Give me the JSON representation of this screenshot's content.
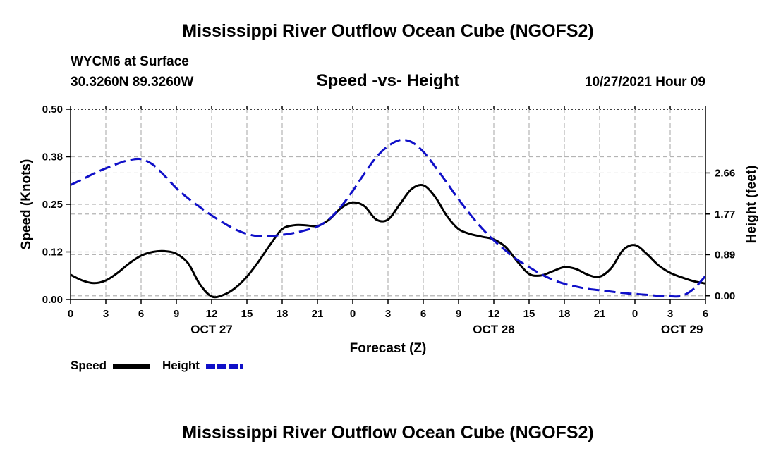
{
  "header": {
    "title": "Mississippi River Outflow Ocean Cube (NGOFS2)",
    "station": "WYCM6 at Surface",
    "coords": "30.3260N  89.3260W",
    "datetime": "10/27/2021 Hour 09",
    "footer_title": "Mississippi River Outflow Ocean Cube (NGOFS2)"
  },
  "legend": {
    "speed_label": "Speed",
    "height_label": "Height",
    "speed_color": "#000000",
    "height_color": "#1010c8"
  },
  "chart_data": {
    "type": "line",
    "title": "Speed -vs- Height",
    "xlabel": "Forecast (Z)",
    "ylabel": "Speed (Knots)",
    "y2label": "Height (feet)",
    "xlim": [
      0,
      54
    ],
    "ylim": [
      0,
      0.5
    ],
    "y2lim": [
      -0.08,
      4.04
    ],
    "x_ticks": [
      0,
      3,
      6,
      9,
      12,
      15,
      18,
      21,
      24,
      27,
      30,
      33,
      36,
      39,
      42,
      45,
      48,
      51,
      54
    ],
    "x_tick_labels": [
      "0",
      "3",
      "6",
      "9",
      "12",
      "15",
      "18",
      "21",
      "0",
      "3",
      "6",
      "9",
      "12",
      "15",
      "18",
      "21",
      "0",
      "3",
      "6"
    ],
    "day_labels": [
      {
        "x": 12,
        "label": "OCT 27"
      },
      {
        "x": 36,
        "label": "OCT 28"
      },
      {
        "x": 52,
        "label": "OCT 29"
      }
    ],
    "y_ticks": [
      0,
      0.125,
      0.25,
      0.375,
      0.5
    ],
    "y_tick_labels": [
      "0.00",
      "0.12",
      "0.25",
      "0.38",
      "0.50"
    ],
    "y2_ticks": [
      0,
      0.89,
      1.77,
      2.66
    ],
    "y2_tick_labels": [
      "0.00",
      "0.89",
      "1.77",
      "2.66"
    ],
    "grid": true,
    "series": [
      {
        "name": "Speed",
        "axis": "left",
        "color": "#000000",
        "dash": "solid",
        "x": [
          0,
          1,
          2,
          3,
          4,
          5,
          6,
          7,
          8,
          9,
          10,
          11,
          12,
          13,
          14,
          15,
          16,
          17,
          18,
          19,
          20,
          21,
          22,
          23,
          24,
          25,
          26,
          27,
          28,
          29,
          30,
          31,
          32,
          33,
          34,
          35,
          36,
          37,
          38,
          39,
          40,
          41,
          42,
          43,
          44,
          45,
          46,
          47,
          48,
          49,
          50,
          51,
          52,
          53,
          54
        ],
        "values": [
          0.065,
          0.05,
          0.043,
          0.05,
          0.07,
          0.095,
          0.115,
          0.125,
          0.127,
          0.12,
          0.095,
          0.04,
          0.008,
          0.012,
          0.03,
          0.06,
          0.1,
          0.145,
          0.185,
          0.195,
          0.195,
          0.193,
          0.21,
          0.24,
          0.255,
          0.245,
          0.21,
          0.21,
          0.25,
          0.29,
          0.3,
          0.27,
          0.22,
          0.185,
          0.172,
          0.165,
          0.158,
          0.138,
          0.1,
          0.067,
          0.063,
          0.074,
          0.085,
          0.08,
          0.065,
          0.06,
          0.083,
          0.13,
          0.143,
          0.12,
          0.09,
          0.07,
          0.058,
          0.048,
          0.042
        ]
      },
      {
        "name": "Height",
        "axis": "right",
        "color": "#1010c8",
        "dash": "dashed",
        "x": [
          0,
          1,
          2,
          3,
          4,
          5,
          6,
          7,
          8,
          9,
          10,
          11,
          12,
          13,
          14,
          15,
          16,
          17,
          18,
          19,
          20,
          21,
          22,
          23,
          24,
          25,
          26,
          27,
          28,
          29,
          30,
          31,
          32,
          33,
          34,
          35,
          36,
          37,
          38,
          39,
          40,
          41,
          42,
          43,
          44,
          45,
          46,
          47,
          48,
          49,
          50,
          51,
          52,
          53,
          54
        ],
        "values": [
          2.4,
          2.52,
          2.65,
          2.76,
          2.86,
          2.94,
          2.96,
          2.84,
          2.6,
          2.33,
          2.11,
          1.92,
          1.74,
          1.58,
          1.44,
          1.34,
          1.29,
          1.29,
          1.32,
          1.36,
          1.42,
          1.5,
          1.66,
          1.93,
          2.27,
          2.65,
          3.0,
          3.24,
          3.37,
          3.33,
          3.12,
          2.8,
          2.45,
          2.09,
          1.76,
          1.46,
          1.2,
          0.98,
          0.78,
          0.62,
          0.47,
          0.35,
          0.26,
          0.2,
          0.15,
          0.12,
          0.09,
          0.06,
          0.04,
          0.02,
          0.0,
          -0.01,
          0.0,
          0.15,
          0.43
        ]
      }
    ]
  }
}
